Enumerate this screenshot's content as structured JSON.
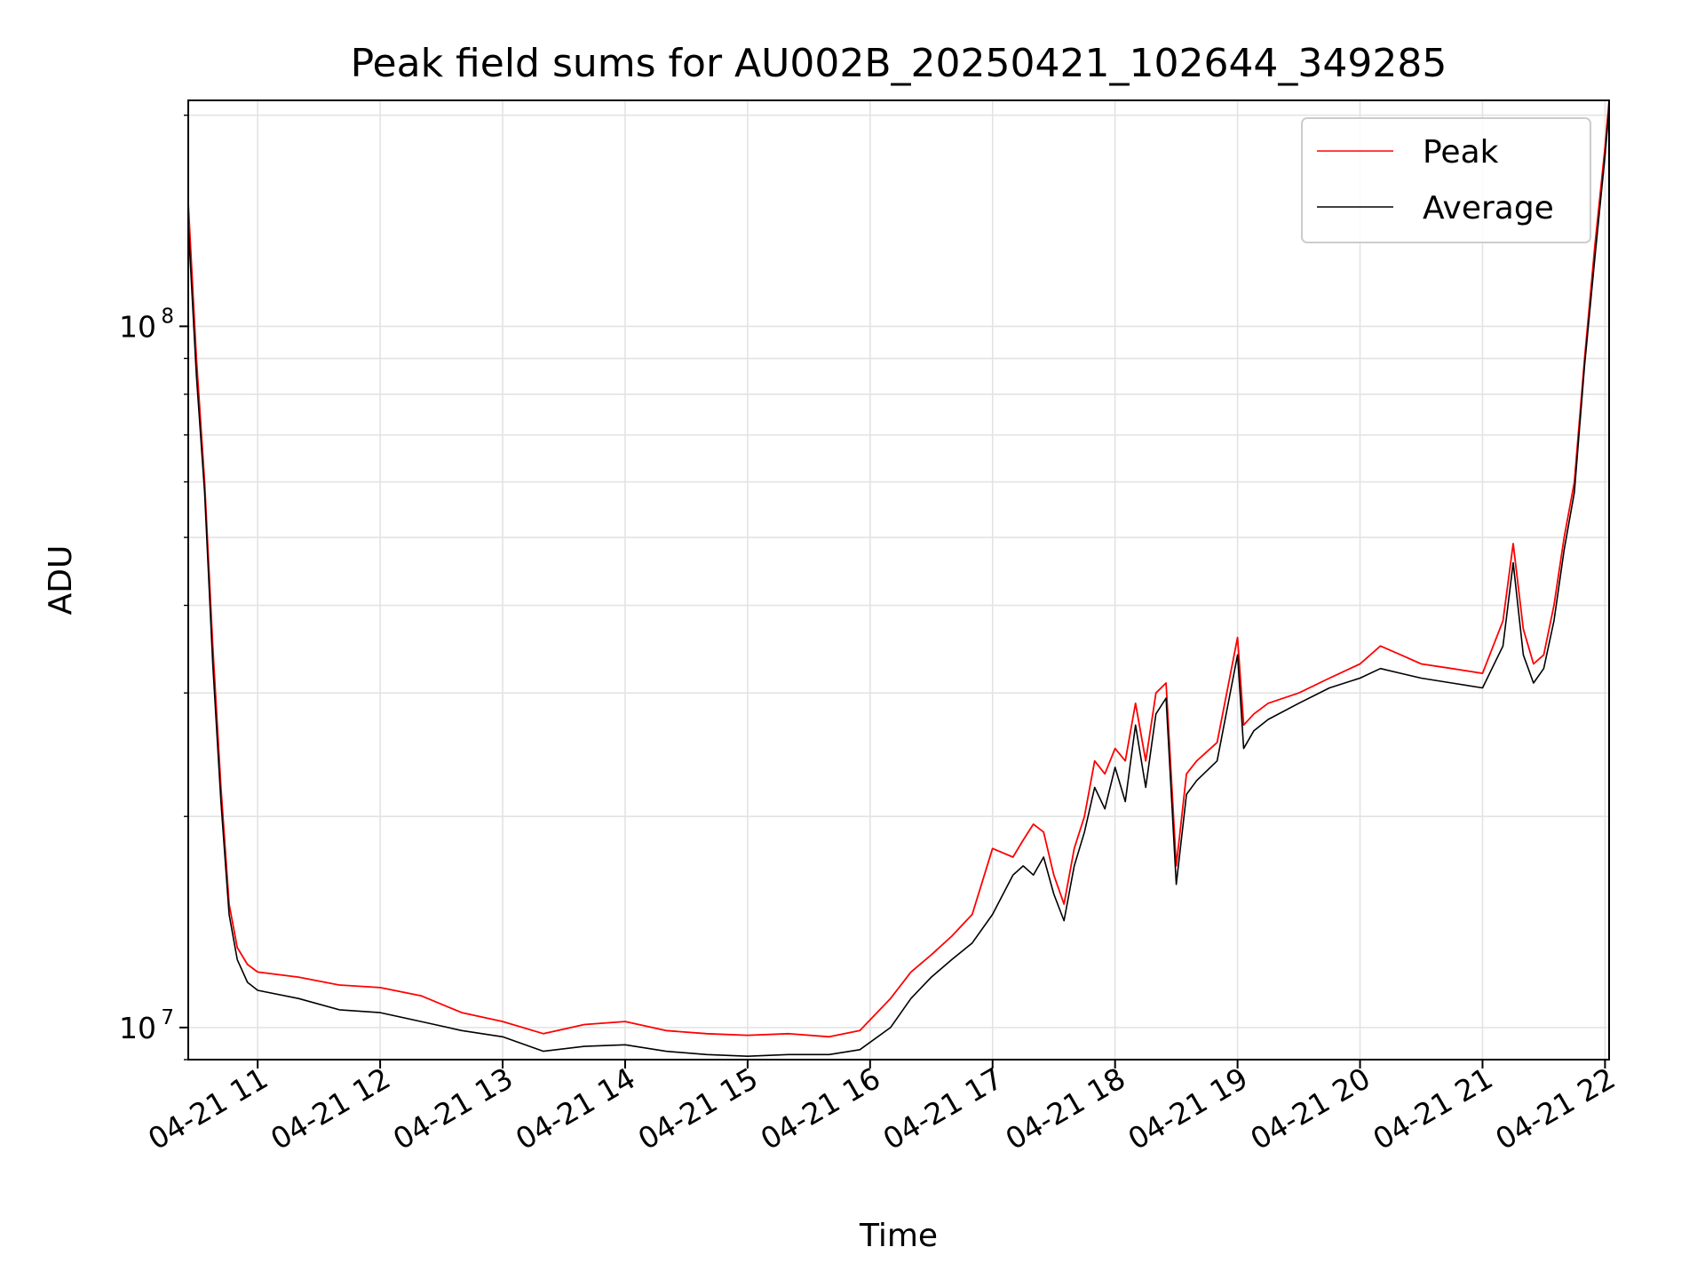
{
  "chart_data": {
    "type": "line",
    "title": "Peak field sums for AU002B_20250421_102644_349285",
    "xlabel": "Time",
    "ylabel": "ADU",
    "yscale": "log",
    "grid": true,
    "legend_position": "top-right",
    "xlim": [
      "2025-04-21 10:26",
      "2025-04-21 22:02"
    ],
    "ylim": [
      9000000,
      210000000
    ],
    "x_ticks": [
      {
        "value": "2025-04-21 11:00",
        "label": "04-21 11"
      },
      {
        "value": "2025-04-21 12:00",
        "label": "04-21 12"
      },
      {
        "value": "2025-04-21 13:00",
        "label": "04-21 13"
      },
      {
        "value": "2025-04-21 14:00",
        "label": "04-21 14"
      },
      {
        "value": "2025-04-21 15:00",
        "label": "04-21 15"
      },
      {
        "value": "2025-04-21 16:00",
        "label": "04-21 16"
      },
      {
        "value": "2025-04-21 17:00",
        "label": "04-21 17"
      },
      {
        "value": "2025-04-21 18:00",
        "label": "04-21 18"
      },
      {
        "value": "2025-04-21 19:00",
        "label": "04-21 19"
      },
      {
        "value": "2025-04-21 20:00",
        "label": "04-21 20"
      },
      {
        "value": "2025-04-21 21:00",
        "label": "04-21 21"
      },
      {
        "value": "2025-04-21 22:00",
        "label": "04-21 22"
      }
    ],
    "y_ticks": [
      {
        "value": 10000000,
        "base": "10",
        "exp": "7"
      },
      {
        "value": 100000000,
        "base": "10",
        "exp": "8"
      }
    ],
    "series": [
      {
        "name": "Peak",
        "color": "#ff0000",
        "x": [
          "2025-04-21 10:26",
          "2025-04-21 10:30",
          "2025-04-21 10:34",
          "2025-04-21 10:38",
          "2025-04-21 10:42",
          "2025-04-21 10:46",
          "2025-04-21 10:50",
          "2025-04-21 10:55",
          "2025-04-21 11:00",
          "2025-04-21 11:20",
          "2025-04-21 11:40",
          "2025-04-21 12:00",
          "2025-04-21 12:20",
          "2025-04-21 12:40",
          "2025-04-21 13:00",
          "2025-04-21 13:20",
          "2025-04-21 13:40",
          "2025-04-21 14:00",
          "2025-04-21 14:20",
          "2025-04-21 14:40",
          "2025-04-21 15:00",
          "2025-04-21 15:20",
          "2025-04-21 15:40",
          "2025-04-21 15:55",
          "2025-04-21 16:10",
          "2025-04-21 16:20",
          "2025-04-21 16:30",
          "2025-04-21 16:40",
          "2025-04-21 16:50",
          "2025-04-21 17:00",
          "2025-04-21 17:10",
          "2025-04-21 17:15",
          "2025-04-21 17:20",
          "2025-04-21 17:25",
          "2025-04-21 17:30",
          "2025-04-21 17:35",
          "2025-04-21 17:40",
          "2025-04-21 17:45",
          "2025-04-21 17:50",
          "2025-04-21 17:55",
          "2025-04-21 18:00",
          "2025-04-21 18:05",
          "2025-04-21 18:10",
          "2025-04-21 18:15",
          "2025-04-21 18:20",
          "2025-04-21 18:25",
          "2025-04-21 18:30",
          "2025-04-21 18:35",
          "2025-04-21 18:40",
          "2025-04-21 18:50",
          "2025-04-21 19:00",
          "2025-04-21 19:03",
          "2025-04-21 19:08",
          "2025-04-21 19:15",
          "2025-04-21 19:30",
          "2025-04-21 19:45",
          "2025-04-21 20:00",
          "2025-04-21 20:10",
          "2025-04-21 20:20",
          "2025-04-21 20:30",
          "2025-04-21 20:45",
          "2025-04-21 21:00",
          "2025-04-21 21:10",
          "2025-04-21 21:15",
          "2025-04-21 21:20",
          "2025-04-21 21:25",
          "2025-04-21 21:30",
          "2025-04-21 21:35",
          "2025-04-21 21:40",
          "2025-04-21 21:45",
          "2025-04-21 21:50",
          "2025-04-21 21:55",
          "2025-04-21 22:00",
          "2025-04-21 22:02"
        ],
        "values": [
          150000000,
          90000000,
          60000000,
          35000000,
          22000000,
          15000000,
          13000000,
          12300000,
          12000000,
          11800000,
          11500000,
          11400000,
          11100000,
          10500000,
          10200000,
          9800000,
          10100000,
          10200000,
          9900000,
          9800000,
          9750000,
          9800000,
          9700000,
          9900000,
          11000000,
          12000000,
          12700000,
          13500000,
          14500000,
          18000000,
          17500000,
          18500000,
          19500000,
          19000000,
          16500000,
          15000000,
          18000000,
          20000000,
          24000000,
          23000000,
          25000000,
          24000000,
          29000000,
          24000000,
          30000000,
          31000000,
          17000000,
          23000000,
          24000000,
          25500000,
          36000000,
          27000000,
          28000000,
          29000000,
          30000000,
          31500000,
          33000000,
          35000000,
          34000000,
          33000000,
          32500000,
          32000000,
          38000000,
          49000000,
          37000000,
          33000000,
          34000000,
          40000000,
          50000000,
          60000000,
          90000000,
          130000000,
          180000000,
          210000000
        ]
      },
      {
        "name": "Average",
        "color": "#000000",
        "x": [
          "2025-04-21 10:26",
          "2025-04-21 10:30",
          "2025-04-21 10:34",
          "2025-04-21 10:38",
          "2025-04-21 10:42",
          "2025-04-21 10:46",
          "2025-04-21 10:50",
          "2025-04-21 10:55",
          "2025-04-21 11:00",
          "2025-04-21 11:20",
          "2025-04-21 11:40",
          "2025-04-21 12:00",
          "2025-04-21 12:20",
          "2025-04-21 12:40",
          "2025-04-21 13:00",
          "2025-04-21 13:20",
          "2025-04-21 13:40",
          "2025-04-21 14:00",
          "2025-04-21 14:20",
          "2025-04-21 14:40",
          "2025-04-21 15:00",
          "2025-04-21 15:20",
          "2025-04-21 15:40",
          "2025-04-21 15:55",
          "2025-04-21 16:10",
          "2025-04-21 16:20",
          "2025-04-21 16:30",
          "2025-04-21 16:40",
          "2025-04-21 16:50",
          "2025-04-21 17:00",
          "2025-04-21 17:10",
          "2025-04-21 17:15",
          "2025-04-21 17:20",
          "2025-04-21 17:25",
          "2025-04-21 17:30",
          "2025-04-21 17:35",
          "2025-04-21 17:40",
          "2025-04-21 17:45",
          "2025-04-21 17:50",
          "2025-04-21 17:55",
          "2025-04-21 18:00",
          "2025-04-21 18:05",
          "2025-04-21 18:10",
          "2025-04-21 18:15",
          "2025-04-21 18:20",
          "2025-04-21 18:25",
          "2025-04-21 18:30",
          "2025-04-21 18:35",
          "2025-04-21 18:40",
          "2025-04-21 18:50",
          "2025-04-21 19:00",
          "2025-04-21 19:03",
          "2025-04-21 19:08",
          "2025-04-21 19:15",
          "2025-04-21 19:30",
          "2025-04-21 19:45",
          "2025-04-21 20:00",
          "2025-04-21 20:10",
          "2025-04-21 20:20",
          "2025-04-21 20:30",
          "2025-04-21 20:45",
          "2025-04-21 21:00",
          "2025-04-21 21:10",
          "2025-04-21 21:15",
          "2025-04-21 21:20",
          "2025-04-21 21:25",
          "2025-04-21 21:30",
          "2025-04-21 21:35",
          "2025-04-21 21:40",
          "2025-04-21 21:45",
          "2025-04-21 21:50",
          "2025-04-21 21:55",
          "2025-04-21 22:00",
          "2025-04-21 22:02"
        ],
        "values": [
          140000000,
          85000000,
          58000000,
          33000000,
          21000000,
          14500000,
          12500000,
          11600000,
          11300000,
          11000000,
          10600000,
          10500000,
          10200000,
          9900000,
          9700000,
          9250000,
          9400000,
          9450000,
          9250000,
          9150000,
          9100000,
          9150000,
          9150000,
          9300000,
          10000000,
          11000000,
          11800000,
          12500000,
          13200000,
          14500000,
          16500000,
          17000000,
          16500000,
          17500000,
          15500000,
          14200000,
          17000000,
          19000000,
          22000000,
          20500000,
          23500000,
          21000000,
          27000000,
          22000000,
          28000000,
          29500000,
          16000000,
          21500000,
          22500000,
          24000000,
          34000000,
          25000000,
          26500000,
          27500000,
          29000000,
          30500000,
          31500000,
          32500000,
          32000000,
          31500000,
          31000000,
          30500000,
          35000000,
          46000000,
          34000000,
          31000000,
          32500000,
          38000000,
          48000000,
          58000000,
          88000000,
          125000000,
          175000000,
          205000000
        ]
      }
    ]
  }
}
